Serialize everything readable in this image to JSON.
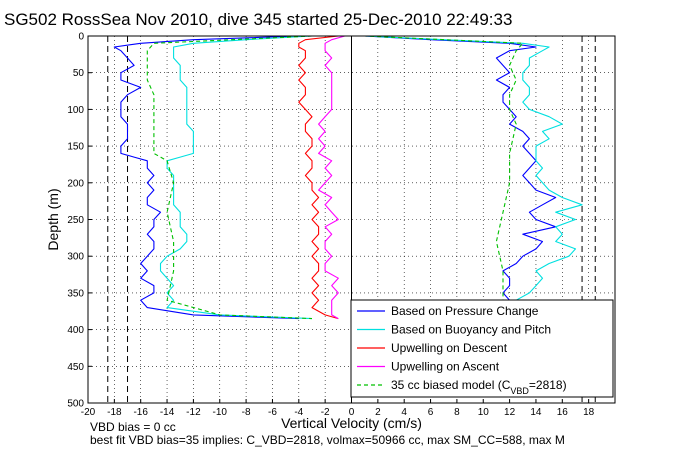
{
  "title": "SG502 RossSea Nov 2010, dive 345 started 25-Dec-2010 22:49:33",
  "notes": {
    "line1": "VBD bias = 0 cc",
    "line2": "best fit VBD bias=35 implies: C_VBD=2818, volmax=50966 cc, max SM_CC=588, max M"
  },
  "chart_data": {
    "type": "line",
    "title": "SG502 RossSea Nov 2010, dive 345 started 25-Dec-2010 22:49:33",
    "xlabel": "Vertical Velocity (cm/s)",
    "ylabel": "Depth (m)",
    "xlim": [
      -20,
      20
    ],
    "ylim": [
      0,
      500
    ],
    "y_reversed": true,
    "grid": true,
    "legend_position": "lower-right",
    "x_ticks": [
      "-20",
      "-18",
      "-16",
      "-14",
      "-12",
      "-10",
      "-8",
      "-6",
      "-4",
      "-2",
      "0",
      "2",
      "4",
      "6",
      "8",
      "10",
      "12",
      "14",
      "16",
      "18"
    ],
    "y_ticks": [
      "0",
      "50",
      "100",
      "150",
      "200",
      "250",
      "300",
      "350",
      "400",
      "450",
      "500"
    ],
    "series": [
      {
        "name": "Based on Pressure Change",
        "color": "#0000ff",
        "style": "solid",
        "descent": {
          "depth": [
            0,
            5,
            10,
            15,
            20,
            30,
            40,
            50,
            60,
            70,
            80,
            90,
            100,
            110,
            120,
            130,
            140,
            150,
            160,
            165,
            170,
            180,
            190,
            200,
            210,
            220,
            230,
            240,
            250,
            260,
            270,
            280,
            290,
            300,
            310,
            320,
            330,
            340,
            350,
            360,
            370,
            380,
            385
          ],
          "velocity": [
            -4,
            -12,
            -16,
            -18,
            -17.5,
            -17,
            -16.5,
            -17.5,
            -17.5,
            -16,
            -17,
            -17.5,
            -17.5,
            -17.5,
            -17,
            -17,
            -17,
            -17.5,
            -17.5,
            -16.5,
            -15.5,
            -15.5,
            -15,
            -15.5,
            -15,
            -15.5,
            -15.5,
            -14.5,
            -15,
            -15,
            -15.5,
            -15,
            -15,
            -15.5,
            -16,
            -15.5,
            -16,
            -15,
            -15,
            -16,
            -15.5,
            -12,
            -4
          ]
        },
        "ascent": {
          "depth": [
            385,
            380,
            370,
            360,
            350,
            340,
            330,
            320,
            310,
            300,
            290,
            280,
            270,
            260,
            250,
            240,
            230,
            220,
            210,
            200,
            190,
            180,
            170,
            160,
            150,
            140,
            130,
            120,
            110,
            100,
            90,
            80,
            70,
            60,
            50,
            40,
            30,
            20,
            15,
            10,
            5,
            0
          ],
          "velocity": [
            4,
            9,
            11,
            12,
            11.5,
            12,
            12,
            11.5,
            12.5,
            13,
            14,
            14.5,
            13,
            15.5,
            14,
            13.5,
            14.5,
            15.5,
            14,
            13.5,
            13,
            13.5,
            14,
            13.5,
            13,
            13.5,
            13,
            12,
            12.5,
            12,
            11.5,
            11.5,
            12,
            11,
            12,
            11.5,
            11,
            12,
            14,
            12,
            6,
            1
          ]
        }
      },
      {
        "name": "Based on Buoyancy and Pitch",
        "color": "#00e0e0",
        "style": "solid",
        "descent": {
          "depth": [
            0,
            5,
            10,
            15,
            20,
            30,
            40,
            50,
            60,
            70,
            80,
            90,
            100,
            110,
            120,
            130,
            140,
            150,
            160,
            165,
            170,
            180,
            190,
            200,
            210,
            220,
            230,
            240,
            250,
            260,
            270,
            280,
            290,
            300,
            310,
            320,
            330,
            340,
            350,
            360,
            370,
            380,
            385
          ],
          "velocity": [
            -3,
            -8,
            -12,
            -13.5,
            -13.5,
            -13.5,
            -13,
            -13,
            -13,
            -12.5,
            -12.5,
            -12.5,
            -12.5,
            -12.5,
            -12.5,
            -12,
            -12,
            -12,
            -12,
            -13,
            -14,
            -14,
            -13.5,
            -13.5,
            -13.5,
            -13.5,
            -13.5,
            -13,
            -13,
            -13,
            -12.5,
            -12.5,
            -13,
            -14,
            -14.5,
            -14.5,
            -14,
            -13.5,
            -14,
            -13.5,
            -14,
            -10,
            -3
          ]
        },
        "ascent": {
          "depth": [
            385,
            380,
            370,
            360,
            350,
            340,
            330,
            320,
            310,
            300,
            290,
            280,
            270,
            260,
            250,
            240,
            230,
            220,
            210,
            200,
            190,
            180,
            170,
            160,
            150,
            140,
            130,
            120,
            110,
            100,
            90,
            80,
            70,
            60,
            50,
            40,
            30,
            20,
            15,
            10,
            5,
            0
          ],
          "velocity": [
            4,
            10,
            12,
            12.5,
            13.5,
            14,
            14.5,
            14,
            15,
            16.5,
            17,
            15.5,
            16,
            15.5,
            17,
            15.5,
            17.5,
            16,
            15,
            14.5,
            14,
            14.5,
            14,
            14,
            14,
            15,
            14.5,
            16,
            15,
            13.5,
            13,
            13.5,
            13.5,
            13,
            13,
            13.5,
            13.5,
            14.5,
            15,
            13,
            7,
            1
          ]
        }
      },
      {
        "name": "Upwelling on Descent",
        "color": "#ff0000",
        "style": "solid",
        "depth": [
          0,
          5,
          10,
          15,
          20,
          30,
          40,
          50,
          60,
          70,
          80,
          90,
          100,
          110,
          120,
          130,
          140,
          150,
          160,
          170,
          180,
          190,
          200,
          210,
          220,
          230,
          240,
          250,
          260,
          270,
          280,
          290,
          300,
          310,
          320,
          330,
          340,
          350,
          360,
          370,
          380,
          385
        ],
        "velocity": [
          -1,
          -3.5,
          -4,
          -4,
          -3.5,
          -3.5,
          -4,
          -3.5,
          -4,
          -3.5,
          -3.5,
          -4,
          -3.5,
          -3,
          -3.5,
          -3.5,
          -3,
          -3,
          -3.5,
          -3,
          -3,
          -3.5,
          -3,
          -3,
          -2.5,
          -3,
          -2.5,
          -3,
          -2.5,
          -2.5,
          -3,
          -2.5,
          -3,
          -2.5,
          -2.5,
          -3,
          -2.5,
          -3,
          -2.5,
          -3,
          -2,
          -1
        ]
      },
      {
        "name": "Upwelling on Ascent",
        "color": "#ff00ff",
        "style": "solid",
        "depth": [
          385,
          380,
          370,
          360,
          350,
          340,
          330,
          320,
          310,
          300,
          290,
          280,
          270,
          260,
          250,
          240,
          230,
          220,
          210,
          200,
          190,
          180,
          170,
          160,
          150,
          140,
          130,
          120,
          110,
          100,
          90,
          80,
          70,
          60,
          50,
          40,
          30,
          20,
          15,
          10,
          5,
          0
        ],
        "velocity": [
          -1,
          -1.5,
          -1.5,
          -1.5,
          -1,
          -1.5,
          -1,
          -2,
          -2,
          -1.5,
          -2,
          -2,
          -1.5,
          -2,
          -1,
          -1.5,
          -2,
          -1.5,
          -2.5,
          -2,
          -1.5,
          -2,
          -1.5,
          -2.5,
          -2,
          -2.5,
          -2,
          -2.5,
          -2,
          -1.5,
          -1.5,
          -1.5,
          -1.5,
          -1.5,
          -1.5,
          -2,
          -1.5,
          -2,
          -2,
          -2,
          -1.5,
          -0.5
        ]
      },
      {
        "name": "35 cc biased model (C_VBD=2818)",
        "color": "#00c000",
        "style": "dashed",
        "descent": {
          "depth": [
            0,
            10,
            20,
            40,
            60,
            80,
            100,
            120,
            140,
            160,
            165,
            170,
            200,
            240,
            280,
            320,
            360,
            380,
            385
          ],
          "velocity": [
            -3,
            -15,
            -15.5,
            -15.5,
            -15.5,
            -15,
            -15,
            -15,
            -15,
            -15,
            -14.5,
            -14,
            -13.5,
            -14,
            -13.5,
            -13.5,
            -14,
            -10,
            -3
          ]
        },
        "ascent": {
          "depth": [
            385,
            380,
            360,
            320,
            280,
            240,
            200,
            160,
            120,
            100,
            80,
            60,
            40,
            20,
            10,
            0
          ],
          "velocity": [
            3,
            9,
            11.5,
            11.5,
            11,
            11.5,
            12,
            12,
            12.5,
            12,
            12,
            12.5,
            12,
            12.5,
            13,
            1
          ]
        }
      }
    ],
    "reference_lines_x": [
      -18.5,
      -17,
      17.5,
      18.5
    ],
    "legend": [
      "Based on Pressure Change",
      "Based on Buoyancy and Pitch",
      "Upwelling on Descent",
      "Upwelling on Ascent",
      "35 cc biased model (C_VBD=2818)"
    ]
  }
}
